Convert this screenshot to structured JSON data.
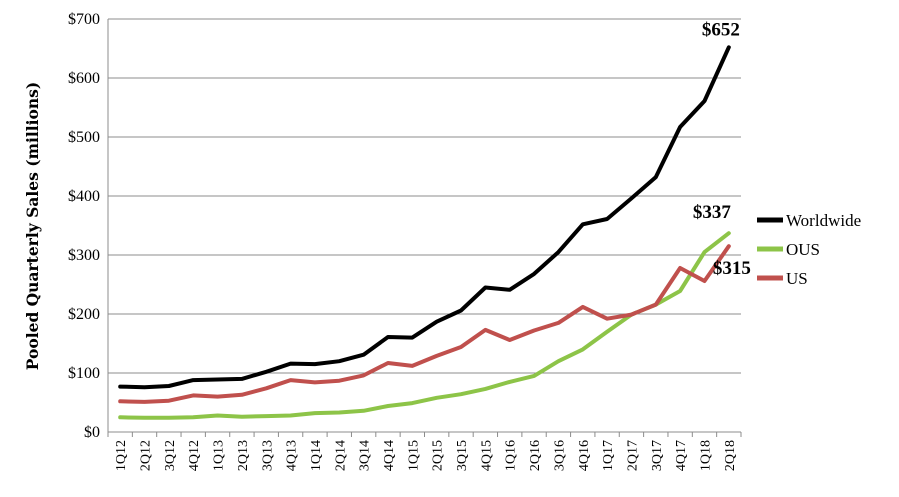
{
  "chart_data": {
    "type": "line",
    "title": "",
    "xlabel": "",
    "ylabel": "Pooled Quarterly Sales (millions)",
    "ylim": [
      0,
      700
    ],
    "yticks": [
      0,
      100,
      200,
      300,
      400,
      500,
      600,
      700
    ],
    "ytick_labels": [
      "$0",
      "$100",
      "$200",
      "$300",
      "$400",
      "$500",
      "$600",
      "$700"
    ],
    "grid": "horizontal",
    "legend_position": "right",
    "categories": [
      "1Q12",
      "2Q12",
      "3Q12",
      "4Q12",
      "1Q13",
      "2Q13",
      "3Q13",
      "4Q13",
      "1Q14",
      "2Q14",
      "3Q14",
      "4Q14",
      "1Q15",
      "2Q15",
      "3Q15",
      "4Q15",
      "1Q16",
      "2Q16",
      "3Q16",
      "4Q16",
      "1Q17",
      "2Q17",
      "3Q17",
      "4Q17",
      "1Q18",
      "2Q18"
    ],
    "series": [
      {
        "name": "Worldwide",
        "color": "#000000",
        "values": [
          77,
          76,
          78,
          88,
          89,
          90,
          102,
          116,
          115,
          120,
          131,
          161,
          160,
          187,
          206,
          245,
          241,
          268,
          305,
          352,
          361,
          396,
          432,
          517,
          561,
          652
        ],
        "end_label": "$652"
      },
      {
        "name": "OUS",
        "color": "#8dc448",
        "values": [
          25,
          24,
          24,
          25,
          28,
          26,
          27,
          28,
          32,
          33,
          36,
          44,
          49,
          58,
          64,
          73,
          85,
          95,
          120,
          140,
          170,
          199,
          216,
          239,
          305,
          337
        ],
        "end_label": "$337"
      },
      {
        "name": "US",
        "color": "#c0504d",
        "values": [
          52,
          51,
          53,
          62,
          60,
          63,
          74,
          88,
          84,
          87,
          96,
          117,
          112,
          129,
          144,
          173,
          156,
          172,
          185,
          212,
          192,
          199,
          216,
          278,
          256,
          315
        ],
        "end_label": "$315"
      }
    ]
  }
}
